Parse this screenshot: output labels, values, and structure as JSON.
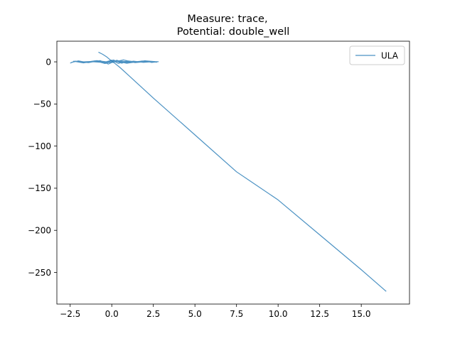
{
  "chart_data": {
    "type": "line",
    "title_line1": "Measure: trace,",
    "title_line2": "Potential: double_well",
    "xlabel": "",
    "ylabel": "",
    "xlim": [
      -3.3,
      17.9
    ],
    "ylim": [
      -287.5,
      24.5
    ],
    "x_ticks": [
      -2.5,
      0.0,
      2.5,
      5.0,
      7.5,
      10.0,
      12.5,
      15.0
    ],
    "x_tick_labels": [
      "−2.5",
      "0.0",
      "2.5",
      "5.0",
      "7.5",
      "10.0",
      "12.5",
      "15.0"
    ],
    "y_ticks": [
      0,
      -50,
      -100,
      -150,
      -200,
      -250
    ],
    "y_tick_labels": [
      "0",
      "−50",
      "−100",
      "−150",
      "−200",
      "−250"
    ],
    "grid": false,
    "legend_position": "top-right",
    "series": [
      {
        "name": "ULA",
        "color": "#1f77b4",
        "opacity": 0.8,
        "x": [
          -0.8,
          -0.55,
          -0.3,
          0.0,
          0.2,
          0.5,
          1.0,
          2.5,
          5.0,
          7.5,
          10.0,
          12.5,
          15.0,
          16.5
        ],
        "y": [
          11.5,
          9.0,
          5.8,
          0.8,
          -2.0,
          -6.8,
          -15.8,
          -43.0,
          -86.7,
          -130.5,
          -163.9,
          -205.3,
          -246.7,
          -272.5
        ]
      },
      {
        "name": "",
        "color": "#1f77b4",
        "opacity": 0.8,
        "x": [
          -2.5,
          -2.2,
          -1.6,
          -1.0,
          -0.5,
          0.0,
          0.4,
          0.9,
          1.5,
          2.0,
          2.4,
          2.8,
          2.2,
          1.6,
          1.0,
          0.6,
          0.1,
          -0.4,
          -0.9,
          -1.5,
          -2.0,
          -2.4,
          -2.1,
          -1.4,
          -0.7,
          -0.2,
          0.3,
          0.8,
          1.3,
          1.9,
          2.6,
          2.0,
          1.2,
          0.5,
          -0.3,
          -1.1,
          -1.8,
          -2.3,
          -1.7,
          -0.9,
          0.0,
          0.7,
          1.4,
          2.2,
          2.7,
          1.8,
          0.9,
          0.2,
          -0.6,
          -1.3,
          -2.0
        ],
        "y": [
          -1.5,
          0.8,
          -0.6,
          1.2,
          -0.9,
          2.0,
          -1.8,
          0.9,
          -0.4,
          1.3,
          -0.7,
          0.2,
          0.5,
          -0.3,
          1.0,
          -1.6,
          2.2,
          -2.0,
          0.6,
          -0.8,
          1.1,
          -0.5,
          0.7,
          -0.9,
          1.5,
          -2.6,
          1.9,
          -1.2,
          0.8,
          -0.6,
          0.3,
          1.2,
          -0.4,
          0.9,
          -1.1,
          0.6,
          -0.3,
          0.7,
          -1.2,
          1.4,
          -0.8,
          2.3,
          -0.9,
          0.5,
          -0.4,
          0.9,
          -1.7,
          1.3,
          -0.6,
          0.4,
          -0.2
        ]
      }
    ]
  }
}
